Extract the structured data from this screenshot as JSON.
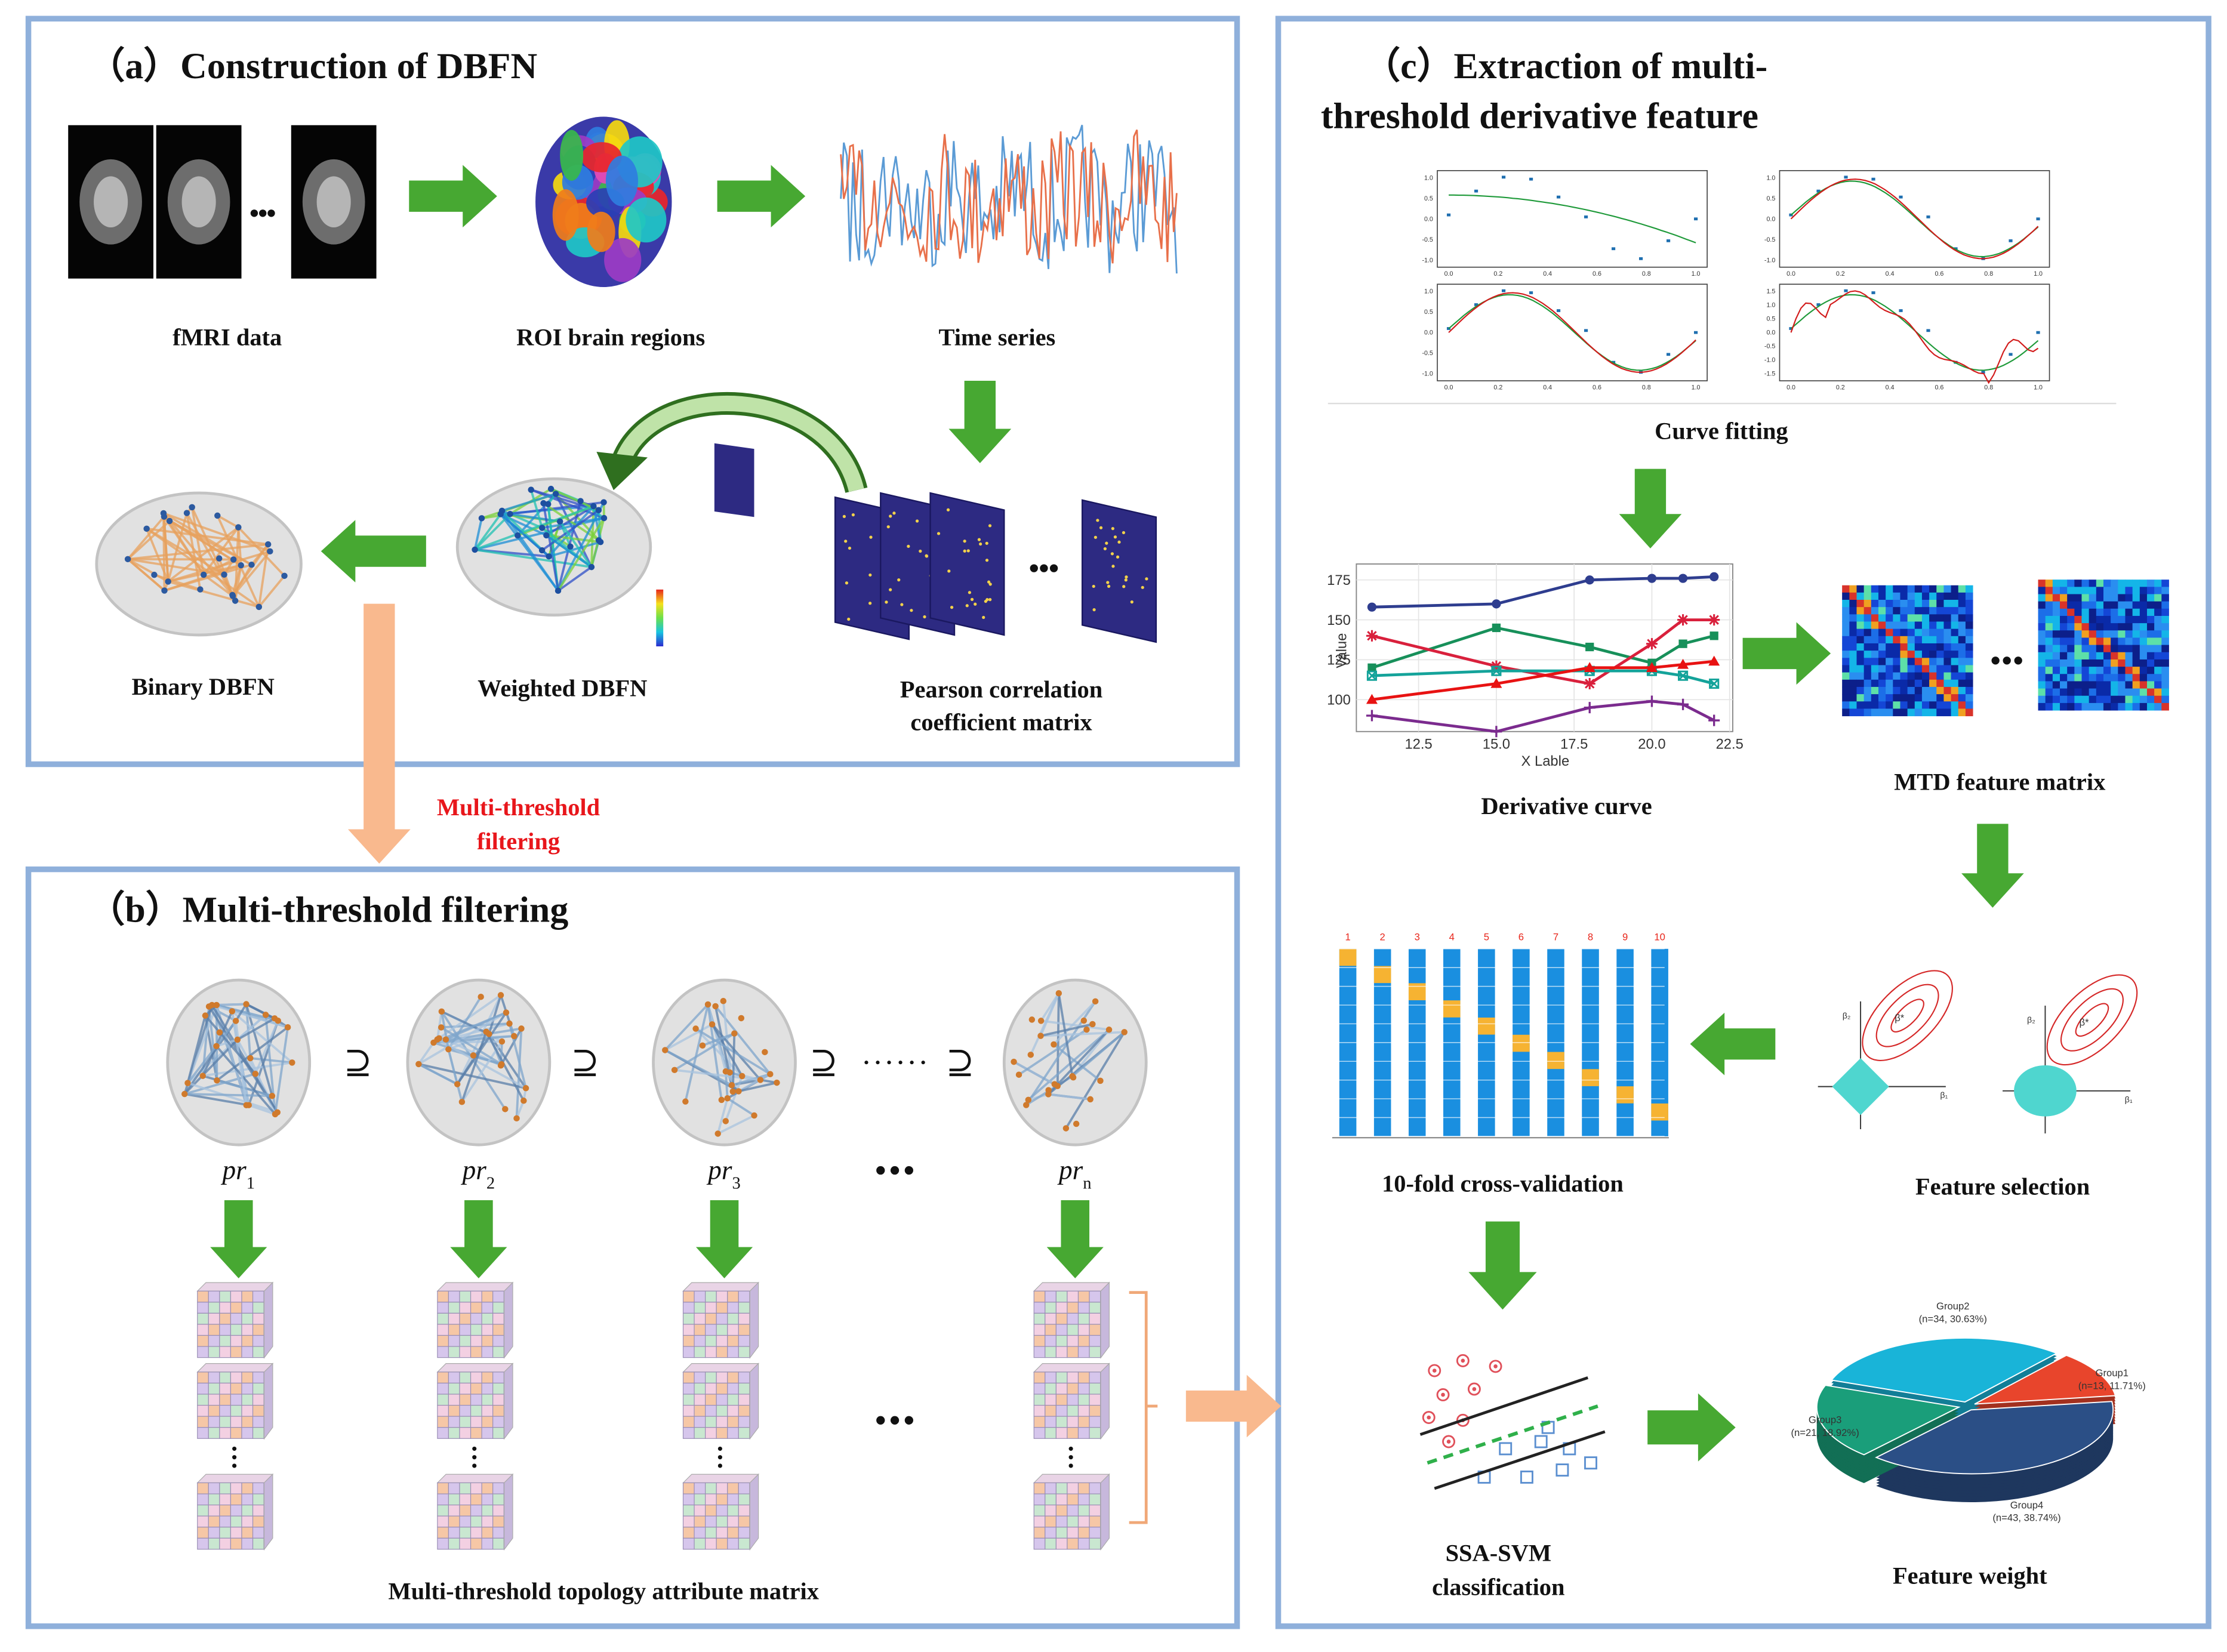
{
  "panel_a": {
    "title": "（a）Construction of DBFN",
    "labels": {
      "fmri": "fMRI data",
      "roi": "ROI brain regions",
      "time_series": "Time series",
      "binary": "Binary DBFN",
      "weighted": "Weighted DBFN",
      "pearson": [
        "Pearson correlation",
        "coefficient matrix"
      ]
    }
  },
  "connector": {
    "label": [
      "Multi-threshold",
      "filtering"
    ]
  },
  "panel_b": {
    "title": "（b）Multi-threshold filtering",
    "subset_symbol": "⊇",
    "threshold_prefix": "pr",
    "thresholds": [
      "1",
      "2",
      "3",
      "n"
    ],
    "footer": "Multi-threshold topology attribute matrix"
  },
  "panel_c": {
    "title": [
      "（c）Extraction of multi-",
      "threshold derivative feature"
    ],
    "curve_fitting": {
      "label": "Curve fitting",
      "x_ticks": [
        "0.0",
        "0.2",
        "0.4",
        "0.6",
        "0.8",
        "1.0"
      ],
      "y_ticks": [
        [
          "1.0",
          "0.5",
          "0.0",
          "-0.5",
          "-1.0"
        ],
        [
          "1.0",
          "0.5",
          "0.0",
          "-0.5",
          "-1.0"
        ],
        [
          "1.0",
          "0.5",
          "0.0",
          "-0.5",
          "-1.0"
        ],
        [
          "1.5",
          "1.0",
          "0.5",
          "0.0",
          "-0.5",
          "-1.0",
          "-1.5"
        ]
      ]
    },
    "derivative_curve": {
      "label": "Derivative curve",
      "y_label": "Value",
      "x_label": "X Lable",
      "xlim": [
        10.5,
        22.6
      ],
      "ylim": [
        80,
        185
      ],
      "yticks": [
        100,
        125,
        150,
        175
      ],
      "xticks": [
        12.5,
        {
          "value": 15,
          "label": "15.0"
        },
        17.5,
        {
          "value": 20,
          "label": "20.0"
        },
        22.5
      ],
      "x": [
        11,
        15,
        18,
        20,
        21,
        22
      ],
      "series": [
        {
          "color": "#2e3d8f",
          "marker": "circle",
          "values": [
            158,
            160,
            175,
            176,
            176,
            177
          ]
        },
        {
          "color": "#17905a",
          "marker": "square",
          "values": [
            120,
            145,
            133,
            123,
            135,
            140
          ]
        },
        {
          "color": "#d9203c",
          "marker": "star",
          "values": [
            140,
            121,
            110,
            135,
            150,
            150
          ]
        },
        {
          "color": "#14a39a",
          "marker": "xsquare",
          "values": [
            115,
            118,
            118,
            118,
            115,
            110
          ]
        },
        {
          "color": "#e81212",
          "marker": "triangle",
          "values": [
            100,
            110,
            120,
            120,
            122,
            124
          ]
        },
        {
          "color": "#7b2b8e",
          "marker": "plus",
          "values": [
            90,
            80,
            95,
            99,
            97,
            87
          ]
        }
      ]
    },
    "mtd_label": "MTD feature matrix",
    "feature_selection": {
      "label": "Feature selection",
      "axis_y": "β₂",
      "axis_x": "β₁",
      "optimum": "β*"
    },
    "cross_validation": {
      "label": "10-fold cross-validation",
      "folds": [
        1,
        2,
        3,
        4,
        5,
        6,
        7,
        8,
        9,
        10
      ]
    },
    "svm_label": [
      "SSA-SVM",
      "classification"
    ],
    "feature_weight": {
      "label": "Feature weight",
      "groups": [
        {
          "name": "Group2",
          "detail": "(n=34, 30.63%)",
          "value": 30.63,
          "color": "#19b4d8"
        },
        {
          "name": "Group1",
          "detail": "(n=13, 11.71%)",
          "value": 11.71,
          "color": "#e8452c"
        },
        {
          "name": "Group4",
          "detail": "(n=43, 38.74%)",
          "value": 38.74,
          "color": "#2b4f86"
        },
        {
          "name": "Group3",
          "detail": "(n=21, 18.92%)",
          "value": 18.92,
          "color": "#1a9e7a"
        }
      ]
    }
  }
}
